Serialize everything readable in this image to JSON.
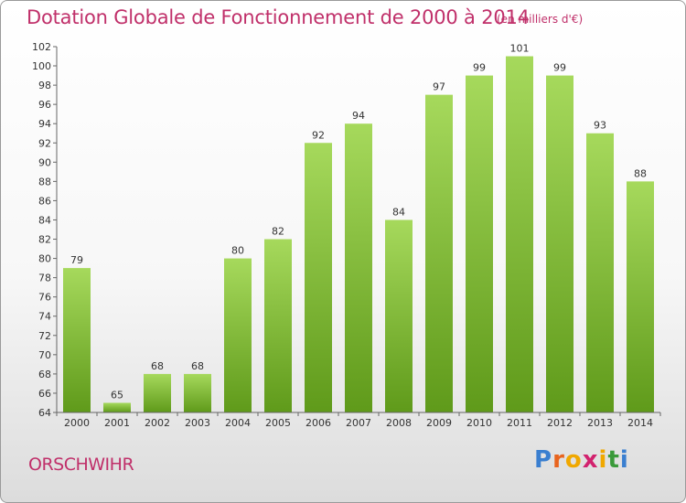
{
  "header": {
    "title": "Dotation Globale de Fonctionnement de 2000 à 2014",
    "subtitle": "(en milliers d'€)"
  },
  "footer": {
    "commune": "ORSCHWIHR",
    "logo_letters": [
      "P",
      "r",
      "o",
      "x",
      "i",
      "t",
      "i"
    ],
    "logo_colors": [
      "#3a7fd0",
      "#e8641e",
      "#f0a800",
      "#d2226e",
      "#f0a800",
      "#3a9a3a",
      "#3a7fd0"
    ]
  },
  "chart_data": {
    "type": "bar",
    "title": "Dotation Globale de Fonctionnement de 2000 à 2014",
    "subtitle": "(en milliers d'€)",
    "categories": [
      "2000",
      "2001",
      "2002",
      "2003",
      "2004",
      "2005",
      "2006",
      "2007",
      "2008",
      "2009",
      "2010",
      "2011",
      "2012",
      "2013",
      "2014"
    ],
    "values": [
      79,
      65,
      68,
      68,
      80,
      82,
      92,
      94,
      84,
      97,
      99,
      101,
      99,
      93,
      88
    ],
    "ylim": [
      64,
      102
    ],
    "yticks": [
      64,
      66,
      68,
      70,
      72,
      74,
      76,
      78,
      80,
      82,
      84,
      86,
      88,
      90,
      92,
      94,
      96,
      98,
      100,
      102
    ],
    "grid": false,
    "legend": "none",
    "bar_color_light": "#a6d95c",
    "bar_color_dark": "#5f9a1a"
  }
}
